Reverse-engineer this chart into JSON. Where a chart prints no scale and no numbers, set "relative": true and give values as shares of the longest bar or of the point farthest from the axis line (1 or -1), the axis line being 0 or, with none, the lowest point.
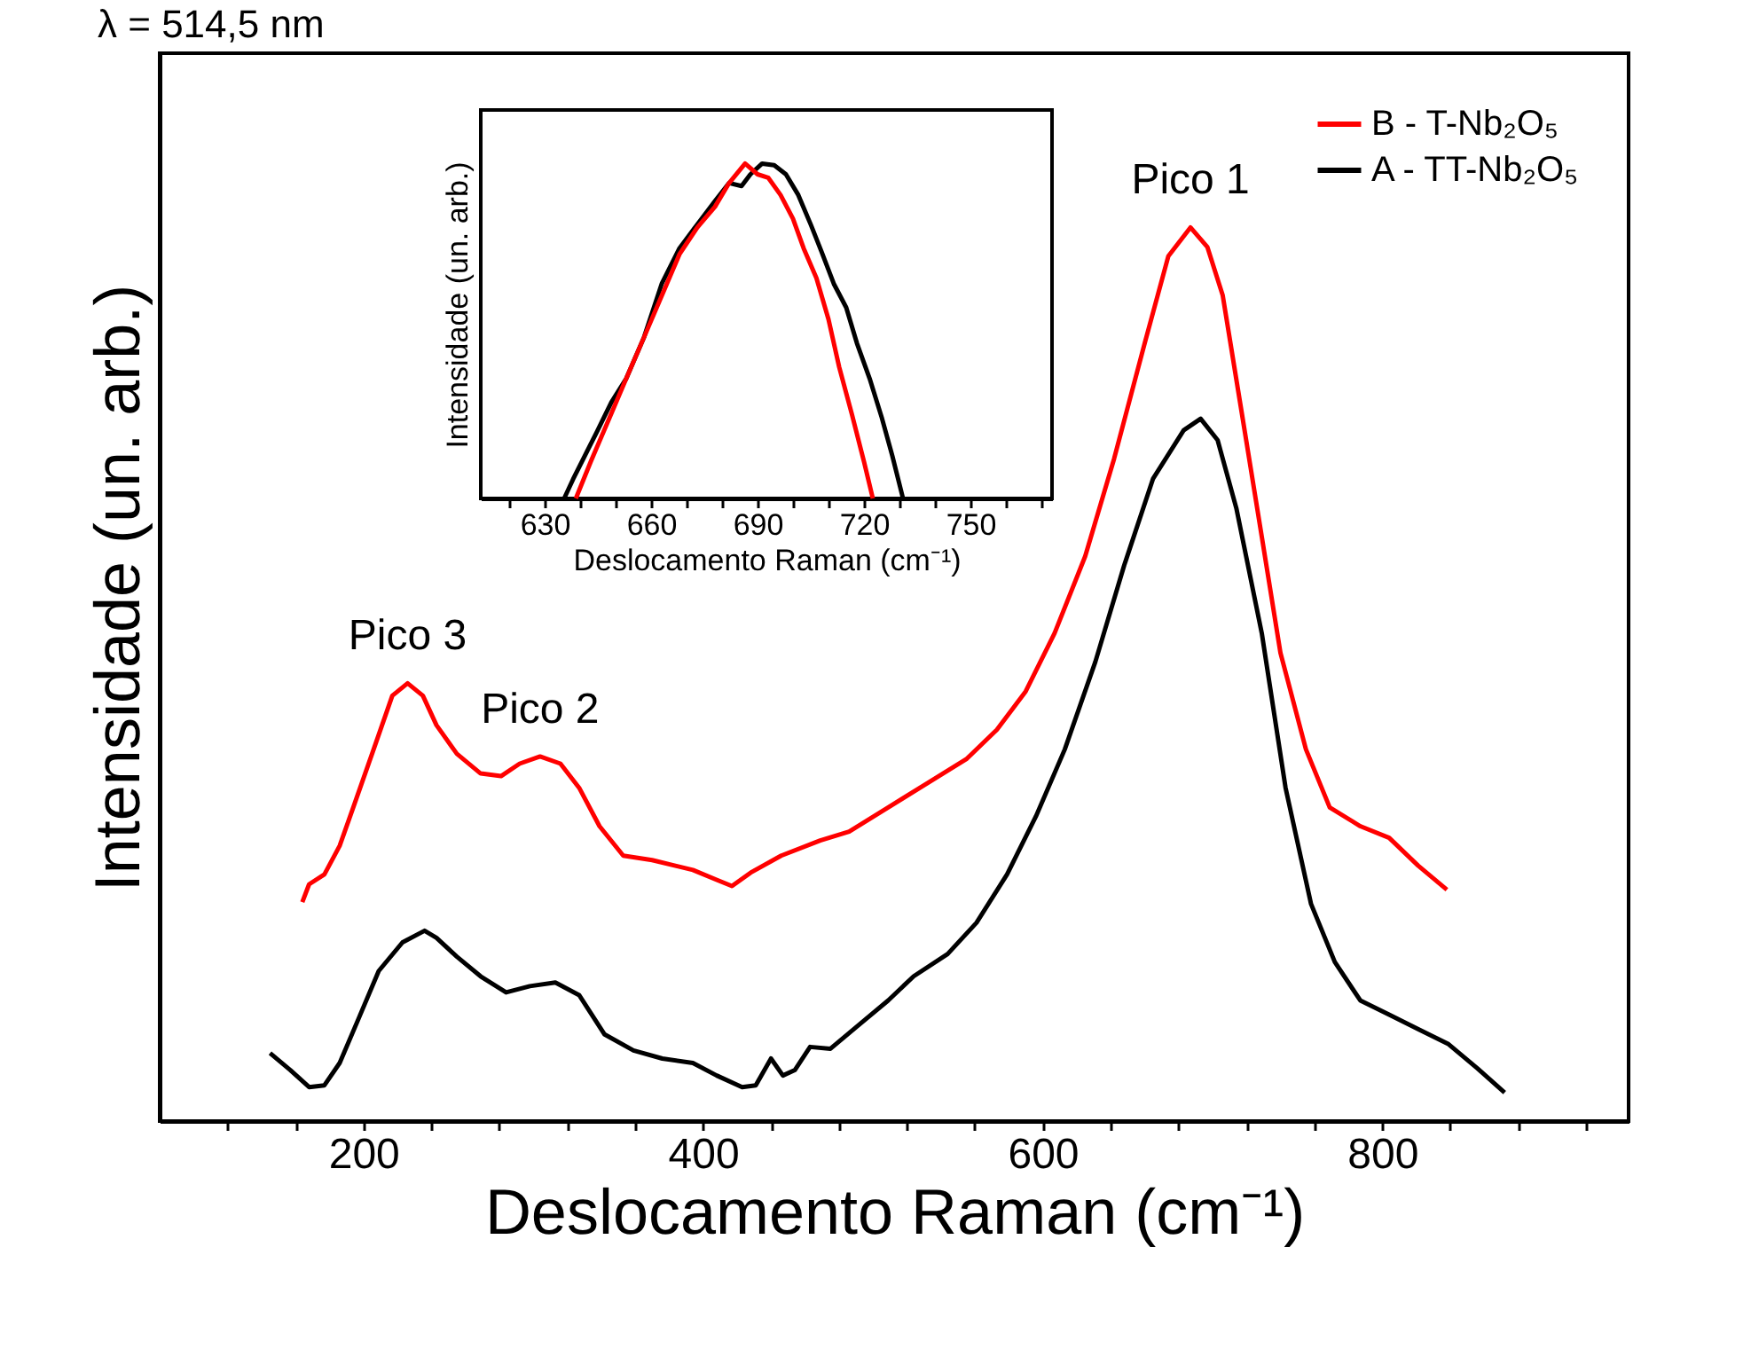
{
  "chart_data": [
    {
      "type": "line",
      "relative": true,
      "xlabel": "Deslocamento Raman (cm⁻¹)",
      "ylabel": "Intensidade (un. arb.)",
      "xlim": [
        80,
        945
      ],
      "xticks": [
        {
          "value": 120,
          "label": null
        },
        {
          "value": 160,
          "label": null
        },
        200,
        {
          "value": 240,
          "label": null
        },
        {
          "value": 280,
          "label": null
        },
        {
          "value": 320,
          "label": null
        },
        {
          "value": 360,
          "label": null
        },
        400,
        {
          "value": 440,
          "label": null
        },
        {
          "value": 480,
          "label": null
        },
        {
          "value": 520,
          "label": null
        },
        {
          "value": 560,
          "label": null
        },
        600,
        {
          "value": 640,
          "label": null
        },
        {
          "value": 680,
          "label": null
        },
        {
          "value": 720,
          "label": null
        },
        {
          "value": 760,
          "label": null
        },
        800,
        {
          "value": 840,
          "label": null
        },
        {
          "value": 880,
          "label": null
        },
        {
          "value": 920,
          "label": null
        }
      ],
      "tick_labels": "x",
      "legend": "top right",
      "annotations": [
        "λ = 514,5 nm",
        {
          "text": "Pico 1",
          "x": 687,
          "y": 1.0
        },
        {
          "text": "Pico 2",
          "x": 304,
          "y": 0.408
        },
        {
          "text": "Pico 3",
          "x": 226,
          "y": 0.49
        }
      ],
      "series": [
        {
          "name": "B - T-Nb₂O₅",
          "color": "#ff0000",
          "x": [
            164,
            168,
            177,
            186,
            194,
            206,
            217,
            226,
            235,
            243,
            255,
            269,
            281,
            292,
            304,
            316,
            327,
            339,
            353,
            370,
            394,
            408,
            417,
            428,
            446,
            469,
            486,
            509,
            532,
            555,
            573,
            590,
            607,
            625,
            642,
            660,
            674,
            687,
            697,
            706,
            717,
            729,
            740,
            755,
            769,
            787,
            804,
            821,
            838
          ],
          "values": [
            0.245,
            0.265,
            0.276,
            0.308,
            0.351,
            0.416,
            0.476,
            0.49,
            0.476,
            0.443,
            0.411,
            0.389,
            0.386,
            0.4,
            0.408,
            0.4,
            0.373,
            0.33,
            0.297,
            0.292,
            0.281,
            0.27,
            0.263,
            0.278,
            0.297,
            0.314,
            0.324,
            0.351,
            0.378,
            0.405,
            0.438,
            0.481,
            0.546,
            0.632,
            0.741,
            0.87,
            0.968,
            1.0,
            0.978,
            0.924,
            0.795,
            0.654,
            0.524,
            0.416,
            0.351,
            0.33,
            0.317,
            0.286,
            0.259
          ]
        },
        {
          "name": "A - TT-Nb₂O₅",
          "color": "#000000",
          "x": [
            145,
            157,
            168,
            177,
            186,
            197,
            209,
            223,
            236,
            243,
            255,
            269,
            284,
            298,
            313,
            327,
            342,
            359,
            376,
            394,
            408,
            423,
            431,
            440,
            447,
            454,
            463,
            475,
            492,
            509,
            524,
            544,
            561,
            579,
            596,
            613,
            631,
            648,
            665,
            683,
            693,
            703,
            714,
            729,
            743,
            758,
            772,
            787,
            804,
            821,
            839,
            856,
            872
          ],
          "values": [
            0.076,
            0.057,
            0.038,
            0.04,
            0.065,
            0.114,
            0.168,
            0.2,
            0.213,
            0.205,
            0.184,
            0.162,
            0.144,
            0.151,
            0.155,
            0.141,
            0.097,
            0.079,
            0.07,
            0.065,
            0.051,
            0.038,
            0.04,
            0.07,
            0.051,
            0.057,
            0.083,
            0.081,
            0.108,
            0.135,
            0.162,
            0.187,
            0.222,
            0.276,
            0.341,
            0.416,
            0.514,
            0.622,
            0.719,
            0.773,
            0.786,
            0.762,
            0.686,
            0.546,
            0.373,
            0.243,
            0.178,
            0.135,
            0.119,
            0.103,
            0.086,
            0.059,
            0.032
          ]
        }
      ]
    },
    {
      "type": "line",
      "relative": true,
      "xlabel": "Deslocamento Raman (cm⁻¹)",
      "ylabel": "Intensidade (un. arb.)",
      "xlim": [
        612,
        773
      ],
      "xticks": [
        {
          "value": 620,
          "label": null
        },
        630,
        {
          "value": 640,
          "label": null
        },
        {
          "value": 650,
          "label": null
        },
        660,
        {
          "value": 670,
          "label": null
        },
        {
          "value": 680,
          "label": null
        },
        690,
        {
          "value": 700,
          "label": null
        },
        {
          "value": 710,
          "label": null
        },
        720,
        {
          "value": 730,
          "label": null
        },
        {
          "value": 740,
          "label": null
        },
        750,
        {
          "value": 760,
          "label": null
        },
        {
          "value": 770,
          "label": null
        }
      ],
      "tick_labels": "x",
      "series": [
        {
          "color": "#000000",
          "x": [
            635.5,
            638,
            641.3,
            644.7,
            648.8,
            653,
            658,
            663,
            668,
            673,
            678,
            682,
            685.5,
            688,
            691.3,
            694.7,
            698,
            701.5,
            705,
            708,
            711.5,
            715,
            718,
            721.6,
            725,
            728,
            731
          ],
          "values": [
            0,
            0.057,
            0.127,
            0.198,
            0.287,
            0.358,
            0.481,
            0.641,
            0.747,
            0.818,
            0.888,
            0.942,
            0.933,
            0.968,
            1.0,
            0.995,
            0.968,
            0.906,
            0.818,
            0.738,
            0.641,
            0.57,
            0.464,
            0.358,
            0.242,
            0.127,
            0
          ]
        },
        {
          "color": "#ff0000",
          "x": [
            638.8,
            643,
            648,
            653,
            658,
            663,
            668,
            673,
            678,
            682,
            686.5,
            690,
            693,
            696.5,
            700,
            703,
            706.6,
            710,
            713,
            716.6,
            720,
            722.5
          ],
          "values": [
            0,
            0.11,
            0.234,
            0.358,
            0.481,
            0.605,
            0.729,
            0.809,
            0.871,
            0.942,
            1.0,
            0.968,
            0.958,
            0.906,
            0.835,
            0.747,
            0.658,
            0.535,
            0.393,
            0.251,
            0.11,
            0
          ]
        }
      ]
    }
  ]
}
